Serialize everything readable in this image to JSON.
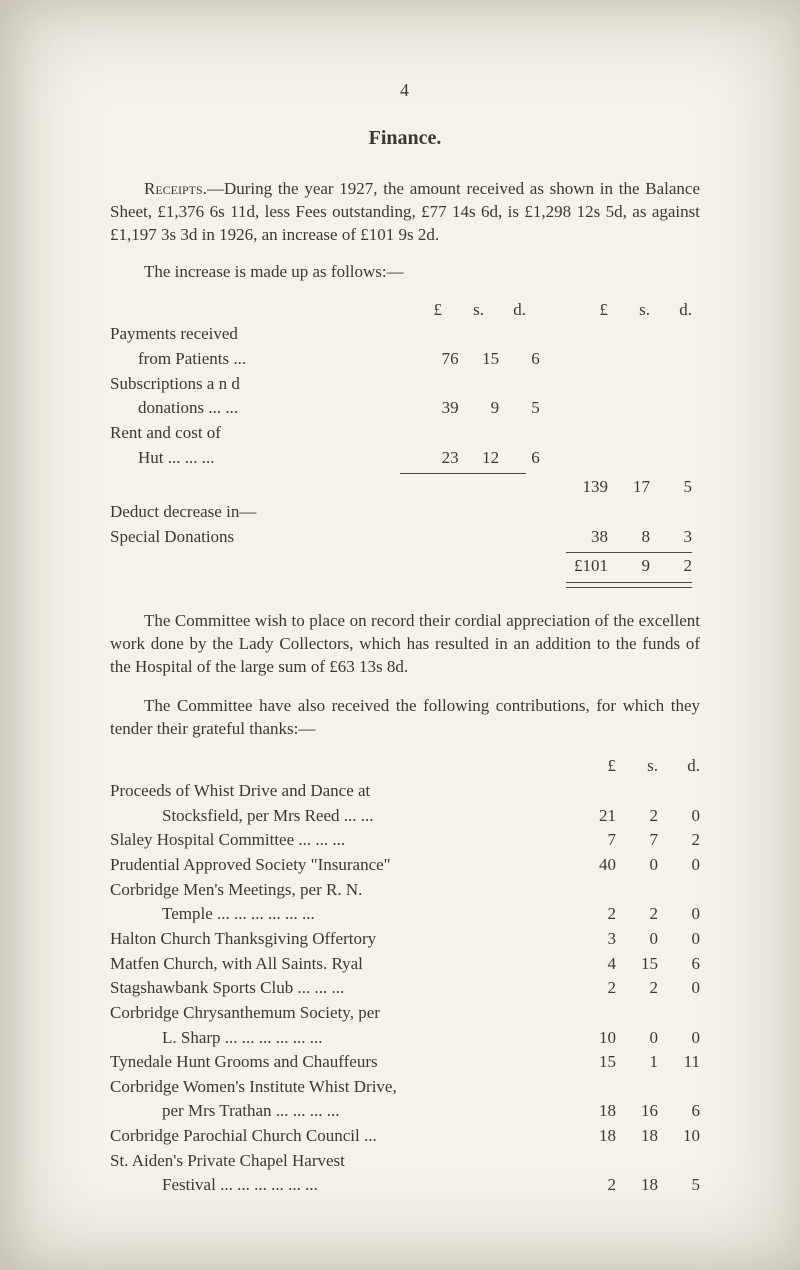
{
  "pagenum": "4",
  "heading": "Finance.",
  "para1": "Receipts.—During the year 1927, the amount received as shown in the Balance Sheet, £1,376 6s 11d, less Fees outstanding, £77 14s 6d, is £1,298 12s 5d, as against £1,197 3s 3d in 1926, an increase of £101 9s 2d.",
  "para2": "The increase is made up as follows:—",
  "ledger": {
    "header_left": "£   s.   d.",
    "header_right": "£   s.   d.",
    "rows": [
      {
        "label": "Payments received",
        "l": [
          "",
          "",
          ""
        ],
        "r": [
          "",
          "",
          ""
        ]
      },
      {
        "label_html": "  from Patients   ...",
        "l": [
          "76",
          "15",
          "6"
        ],
        "r": [
          "",
          "",
          ""
        ]
      },
      {
        "label": "Subscriptions   a n d",
        "l": [
          "",
          "",
          ""
        ],
        "r": [
          "",
          "",
          ""
        ]
      },
      {
        "label_html": "  donations    ...   ...",
        "l": [
          "39",
          "9",
          "5"
        ],
        "r": [
          "",
          "",
          ""
        ]
      },
      {
        "label": "Rent   and   cost   of",
        "l": [
          "",
          "",
          ""
        ],
        "r": [
          "",
          "",
          ""
        ]
      },
      {
        "label_html": "  Hut     ...   ...   ...",
        "l": [
          "23",
          "12",
          "6"
        ],
        "r": [
          "",
          "",
          ""
        ]
      },
      {
        "rule": "A"
      },
      {
        "label": "",
        "l": [
          "",
          "",
          ""
        ],
        "r": [
          "139",
          "17",
          "5"
        ]
      },
      {
        "label": "Deduct decrease in—",
        "l": [
          "",
          "",
          ""
        ],
        "r": [
          "",
          "",
          ""
        ]
      },
      {
        "label": "Special Donations",
        "l": [
          "",
          "",
          ""
        ],
        "r": [
          "38",
          "8",
          "3"
        ]
      },
      {
        "rule": "B"
      },
      {
        "label": "",
        "l": [
          "",
          "",
          ""
        ],
        "r": [
          "£101",
          "9",
          "2"
        ]
      },
      {
        "rule": "B2"
      }
    ]
  },
  "para3": "The Committee wish to place on record their cordial appreciation of the excellent work done by the Lady Collectors, which has resulted in an addition to the funds of the Hospital of the large sum of £63 13s 8d.",
  "para4": "The Committee have also received the following con­tributions, for which they tender their grateful thanks:—",
  "contrib": {
    "header": "£   s.   d.",
    "rows": [
      {
        "label": "Proceeds of Whist Drive and Dance at",
        "v": [
          "",
          "",
          ""
        ]
      },
      {
        "label": "Stocksfield,  per  Mrs  Reed     ...   ...",
        "sub": true,
        "v": [
          "21",
          "2",
          "0"
        ]
      },
      {
        "label": "Slaley  Hospital  Committee     ...   ...   ...",
        "v": [
          "7",
          "7",
          "2"
        ]
      },
      {
        "label": "Prudential Approved Society \"Insurance\"",
        "v": [
          "40",
          "0",
          "0"
        ]
      },
      {
        "label": "Corbridge  Men's  Meetings,  per  R.  N.",
        "v": [
          "",
          "",
          ""
        ]
      },
      {
        "label": "Temple        ...   ...   ...   ...   ...   ...",
        "sub": true,
        "v": [
          "2",
          "2",
          "0"
        ]
      },
      {
        "label": "Halton  Church  Thanksgiving  Offertory",
        "v": [
          "3",
          "0",
          "0"
        ]
      },
      {
        "label": "Matfen  Church,  with  All  Saints.  Ryal",
        "v": [
          "4",
          "15",
          "6"
        ]
      },
      {
        "label": "Stagshawbank  Sports  Club     ...   ...   ...",
        "v": [
          "2",
          "2",
          "0"
        ]
      },
      {
        "label": "Corbridge  Chrysanthemum  Society,  per",
        "v": [
          "",
          "",
          ""
        ]
      },
      {
        "label": "L.  Sharp    ...   ...   ...   ...   ...   ...",
        "sub": true,
        "v": [
          "10",
          "0",
          "0"
        ]
      },
      {
        "label": "Tynedale  Hunt  Grooms  and  Chauffeurs",
        "v": [
          "15",
          "1",
          "11"
        ]
      },
      {
        "label": "Corbridge Women's Institute Whist Drive,",
        "v": [
          "",
          "",
          ""
        ]
      },
      {
        "label": "per  Mrs  Trathan       ...   ...   ...   ...",
        "sub": true,
        "v": [
          "18",
          "16",
          "6"
        ]
      },
      {
        "label": "Corbridge  Parochial  Church  Council   ...",
        "v": [
          "18",
          "18",
          "10"
        ]
      },
      {
        "label": "St.   Aiden's   Private   Chapel   Harvest",
        "v": [
          "",
          "",
          ""
        ]
      },
      {
        "label": "Festival       ...   ...   ...   ...   ...   ...",
        "sub": true,
        "v": [
          "2",
          "18",
          "5"
        ]
      }
    ]
  }
}
